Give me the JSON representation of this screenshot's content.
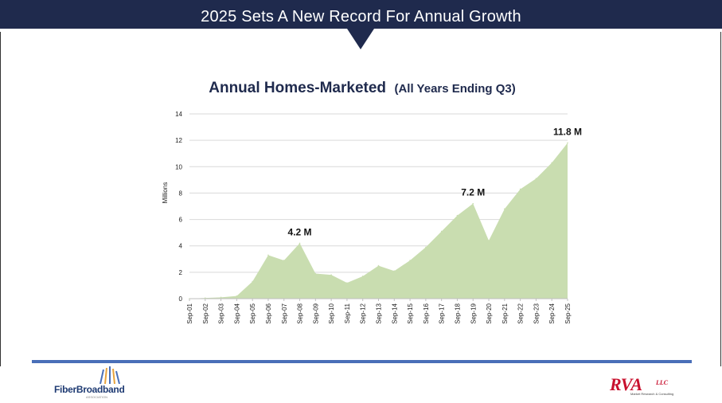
{
  "header": {
    "title": "2025 Sets A New Record For Annual Growth"
  },
  "colors": {
    "header_bg": "#1f2a4d",
    "area_fill": "#c9ddb0",
    "title_color": "#1f2a4d",
    "accent_blue": "#4a6fb8",
    "rva_red": "#c8102e"
  },
  "chart_data": {
    "type": "area",
    "title_main": "Annual Homes-Marketed",
    "title_sub": "(All Years Ending Q3)",
    "ylabel": "Millions",
    "xlabel": "",
    "ylim": [
      0,
      14
    ],
    "yticks": [
      "0",
      "2",
      "4",
      "6",
      "8",
      "10",
      "12",
      "14"
    ],
    "grid": true,
    "categories": [
      "Sep-01",
      "Sep-02",
      "Sep-03",
      "Sep-04",
      "Sep-05",
      "Sep-06",
      "Sep-07",
      "Sep-08",
      "Sep-09",
      "Sep-10",
      "Sep-11",
      "Sep-12",
      "Sep-13",
      "Sep-14",
      "Sep-15",
      "Sep-16",
      "Sep-17",
      "Sep-18",
      "Sep-19",
      "Sep-20",
      "Sep-21",
      "Sep-22",
      "Sep-23",
      "Sep-24",
      "Sep-25"
    ],
    "values": [
      0.0,
      0.05,
      0.1,
      0.2,
      1.3,
      3.3,
      2.9,
      4.2,
      1.9,
      1.8,
      1.2,
      1.7,
      2.5,
      2.1,
      2.9,
      3.9,
      5.1,
      6.3,
      7.2,
      4.4,
      6.8,
      8.3,
      9.1,
      10.3,
      11.8
    ],
    "annotations": [
      {
        "label": "4.2 M",
        "index": 7
      },
      {
        "label": "7.2 M",
        "index": 18
      },
      {
        "label": "11.8 M",
        "index": 24
      }
    ]
  },
  "footer": {
    "left_logo": {
      "name": "FiberBroadband",
      "sub": "ASSOCIATION"
    },
    "right_logo": {
      "name": "RVA",
      "suffix": "LLC",
      "tagline": "Market Research & Consulting"
    }
  }
}
